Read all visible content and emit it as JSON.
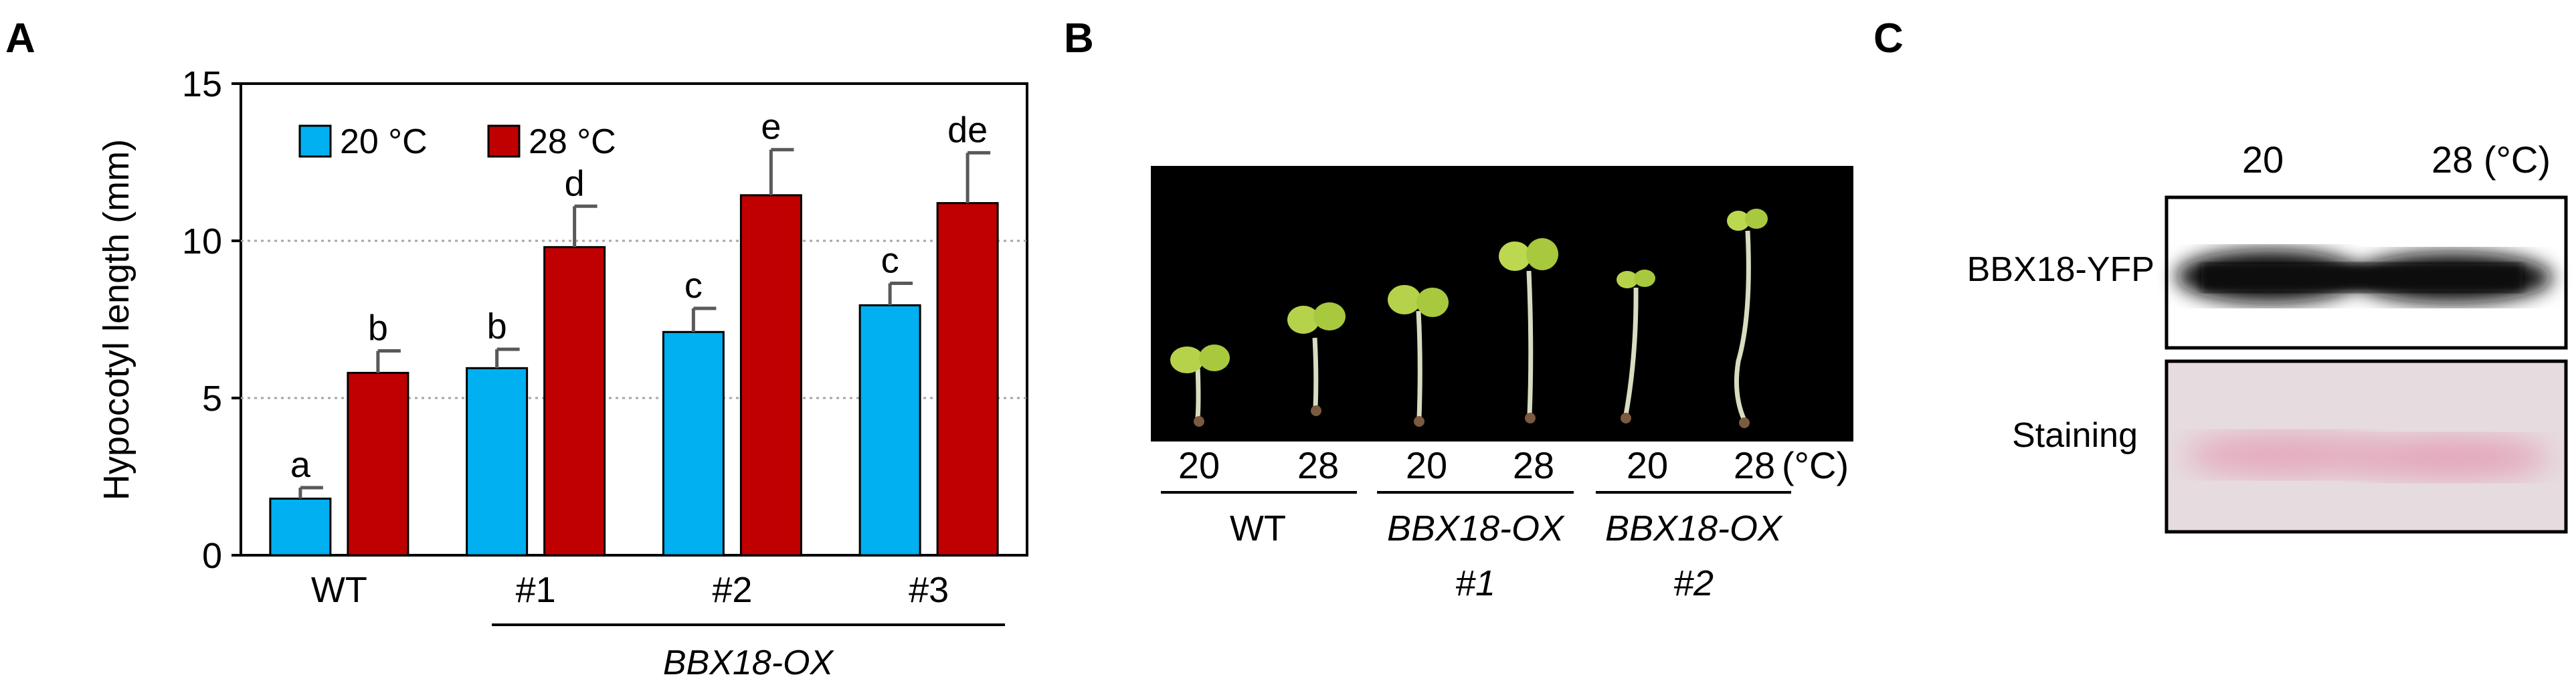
{
  "figure": {
    "panel_a_label": "A",
    "panel_b_label": "B",
    "panel_c_label": "C"
  },
  "chart_data": {
    "type": "bar",
    "ylabel": "Hypocotyl length (mm)",
    "xlabel": "",
    "ylim": [
      0,
      15
    ],
    "yticks": [
      "0",
      "5",
      "10",
      "15"
    ],
    "grid": true,
    "legend_position": "top-left",
    "categories": [
      "WT",
      "#1",
      "#2",
      "#3"
    ],
    "group_label": "BBX18-OX",
    "series": [
      {
        "name": "20 °C",
        "color": "#00b0f0",
        "values": [
          1.8,
          5.95,
          7.1,
          7.95
        ],
        "errors": [
          0.35,
          0.6,
          0.75,
          0.7
        ],
        "letters": [
          "a",
          "b",
          "c",
          "c"
        ]
      },
      {
        "name": "28 °C",
        "color": "#c00000",
        "values": [
          5.8,
          9.8,
          11.45,
          11.2
        ],
        "errors": [
          0.7,
          1.3,
          1.45,
          1.6
        ],
        "letters": [
          "b",
          "d",
          "e",
          "de"
        ]
      }
    ]
  },
  "panel_b": {
    "temps": [
      "20",
      "28",
      "20",
      "28",
      "20",
      "28"
    ],
    "unit": "(°C)",
    "genotypes": [
      {
        "line1": "WT",
        "line2": ""
      },
      {
        "line1": "BBX18-OX",
        "line2": "#1"
      },
      {
        "line1": "BBX18-OX",
        "line2": "#2"
      }
    ]
  },
  "panel_c": {
    "col_20": "20",
    "col_28": "28 (°C)",
    "row_blot": "BBX18-YFP",
    "row_stain": "Staining"
  }
}
